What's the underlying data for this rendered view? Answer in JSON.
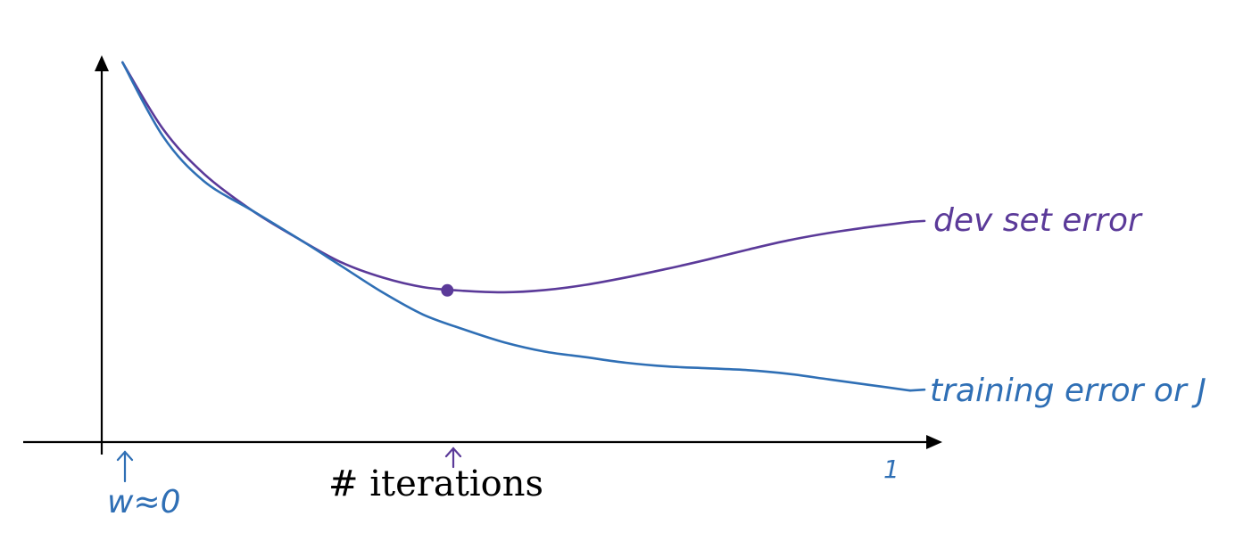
{
  "chart_data": {
    "type": "line",
    "title": "",
    "xlabel": "# iterations",
    "ylabel": "",
    "xlim": [
      0,
      1
    ],
    "ylim": [
      0,
      1
    ],
    "grid": false,
    "legend": "none",
    "x_start_annotation": "w≈0",
    "x_end_tick": "1",
    "series": [
      {
        "name": "dev set error",
        "color": "#5b3a99",
        "x": [
          0.03,
          0.08,
          0.13,
          0.19,
          0.25,
          0.3,
          0.35,
          0.4,
          0.45,
          0.5,
          0.55,
          0.6,
          0.65,
          0.7,
          0.75,
          0.8,
          0.85,
          0.9,
          0.95,
          1.0
        ],
        "y": [
          1.0,
          0.82,
          0.7,
          0.6,
          0.52,
          0.46,
          0.42,
          0.394,
          0.384,
          0.38,
          0.386,
          0.4,
          0.42,
          0.443,
          0.468,
          0.495,
          0.52,
          0.54,
          0.556,
          0.57
        ]
      },
      {
        "name": "training error or J",
        "color": "#2f6fb5",
        "x": [
          0.03,
          0.08,
          0.13,
          0.19,
          0.25,
          0.3,
          0.35,
          0.4,
          0.45,
          0.5,
          0.55,
          0.6,
          0.65,
          0.7,
          0.75,
          0.8,
          0.85,
          0.9,
          0.95,
          1.0
        ],
        "y": [
          1.0,
          0.8,
          0.68,
          0.6,
          0.52,
          0.45,
          0.38,
          0.32,
          0.28,
          0.245,
          0.22,
          0.205,
          0.19,
          0.18,
          0.175,
          0.17,
          0.16,
          0.145,
          0.13,
          0.115
        ]
      }
    ],
    "annotations": {
      "minimum_point": {
        "series": "dev set error",
        "x": 0.43,
        "y": 0.385,
        "color": "#5b3a99"
      },
      "mid_arrow_x": 0.43
    }
  }
}
